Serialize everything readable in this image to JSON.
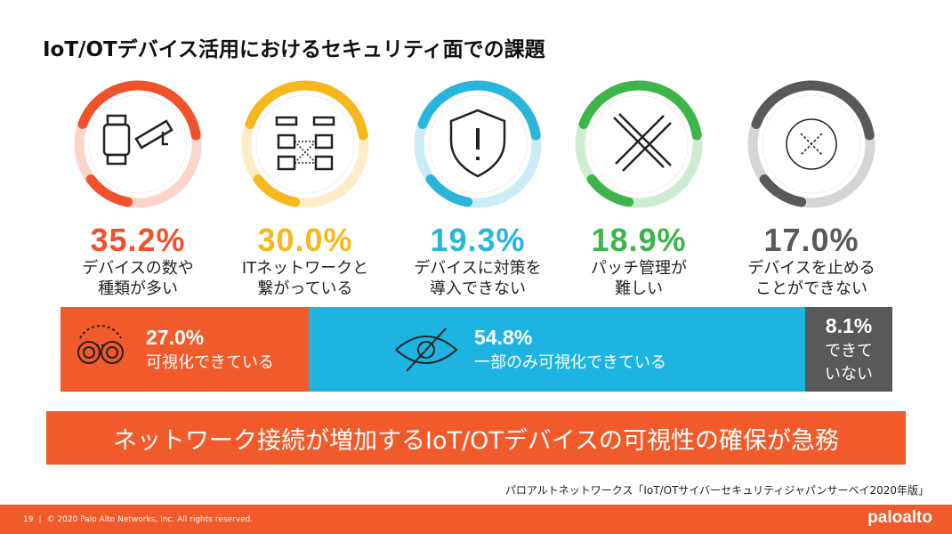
{
  "title": "IoT/OTデバイス活用におけるセキュリティ面での課題",
  "chart_data": {
    "type": "bar",
    "title": "IoT/OTデバイス活用におけるセキュリティ面での課題",
    "challenges": [
      {
        "value": 35.2,
        "pct": "35.2%",
        "line1": "デバイスの数や",
        "line2": "種類が多い",
        "color": "#f0522c",
        "icon": "smartwatch-camera-icon"
      },
      {
        "value": 30.0,
        "pct": "30.0%",
        "line1": "ITネットワークと",
        "line2": "繋がっている",
        "color": "#f6b81d",
        "icon": "network-icon"
      },
      {
        "value": 19.3,
        "pct": "19.3%",
        "line1": "デバイスに対策を",
        "line2": "導入できない",
        "color": "#2ab5dc",
        "icon": "shield-alert-icon"
      },
      {
        "value": 18.9,
        "pct": "18.9%",
        "line1": "パッチ管理が",
        "line2": "難しい",
        "color": "#3db54a",
        "icon": "tools-icon"
      },
      {
        "value": 17.0,
        "pct": "17.0%",
        "line1": "デバイスを止める",
        "line2": "ことができない",
        "color": "#58595b",
        "icon": "x-circle-icon"
      }
    ],
    "visibility": [
      {
        "value": 27.0,
        "pct": "27.0%",
        "label": "可視化できている",
        "color": "#f15a2b",
        "icon": "binoculars-icon"
      },
      {
        "value": 54.8,
        "pct": "54.8%",
        "label": "一部のみ可視化できている",
        "color": "#1db4e2",
        "icon": "eye-slash-icon"
      },
      {
        "value": 8.1,
        "pct": "8.1%",
        "label1": "できて",
        "label2": "いない",
        "color": "#58595b"
      }
    ]
  },
  "banner": "ネットワーク接続が増加するIoT/OTデバイスの可視性の確保が急務",
  "source": "パロアルトネットワークス「IoT/OTサイバーセキュリティジャパンサーベイ2020年版」",
  "footer": {
    "page": "19",
    "copyright": "© 2020 Palo Alto Networks, Inc. All rights reserved.",
    "logo": "paloalto"
  }
}
